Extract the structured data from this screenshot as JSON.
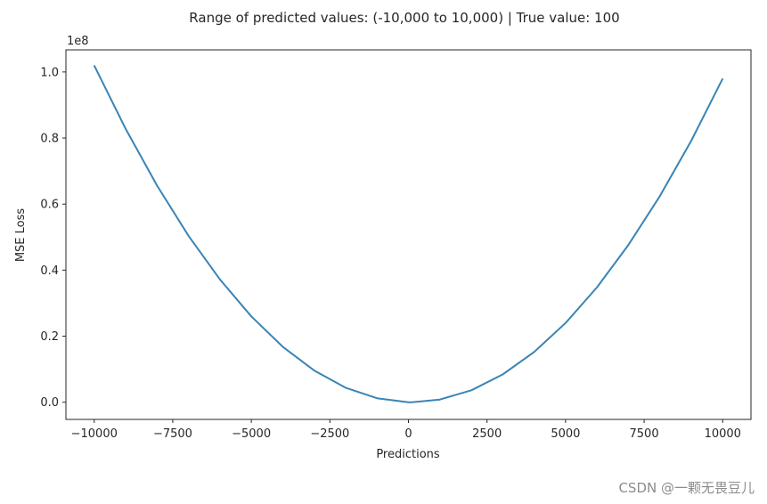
{
  "chart_data": {
    "type": "line",
    "title": "Range of predicted values: (-10,000 to 10,000) | True value: 100",
    "xlabel": "Predictions",
    "ylabel": "MSE Loss",
    "y_offset_label": "1e8",
    "xlim": [
      -10900,
      10900
    ],
    "ylim": [
      -0.052,
      1.067
    ],
    "grid": false,
    "x_ticks": [
      -10000,
      -7500,
      -5000,
      -2500,
      0,
      2500,
      5000,
      7500,
      10000
    ],
    "x_tick_labels": [
      "−10000",
      "−7500",
      "−5000",
      "−2500",
      "0",
      "2500",
      "5000",
      "7500",
      "10000"
    ],
    "y_ticks": [
      0.0,
      0.2,
      0.4,
      0.6,
      0.8,
      1.0
    ],
    "y_tick_labels": [
      "0.0",
      "0.2",
      "0.4",
      "0.6",
      "0.8",
      "1.0"
    ],
    "series": [
      {
        "color": "#3a84b5",
        "x": [
          -10000,
          -9000,
          -8000,
          -7000,
          -6000,
          -5000,
          -4000,
          -3000,
          -2000,
          -1000,
          0,
          100,
          1000,
          2000,
          3000,
          4000,
          5000,
          6000,
          7000,
          8000,
          9000,
          10000
        ],
        "y": [
          1.0201,
          0.8281,
          0.6561,
          0.5041,
          0.3721,
          0.2601,
          0.1681,
          0.0961,
          0.0441,
          0.0121,
          0.0001,
          0.0,
          0.0081,
          0.0361,
          0.0841,
          0.1521,
          0.2401,
          0.3481,
          0.4761,
          0.6241,
          0.7921,
          0.9801
        ]
      }
    ]
  },
  "watermark": "CSDN @一颗无畏豆儿"
}
